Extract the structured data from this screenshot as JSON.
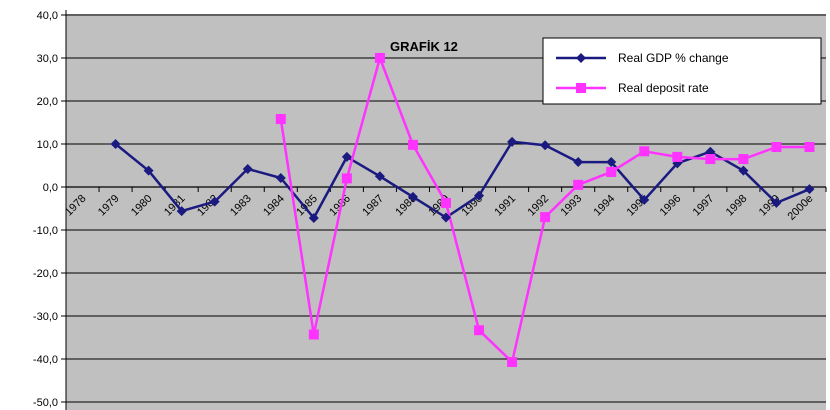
{
  "chart_data": {
    "type": "line",
    "title": "GRAFİK 12",
    "x": [
      "1978",
      "1979",
      "1980",
      "1981",
      "1982",
      "1983",
      "1984",
      "1985",
      "1986",
      "1987",
      "1988",
      "1989",
      "1990",
      "1991",
      "1992",
      "1993",
      "1994",
      "1995",
      "1996",
      "1997",
      "1998",
      "1999",
      "2000e"
    ],
    "ylim": [
      -50,
      40
    ],
    "yticks": [
      "40,0",
      "30,0",
      "20,0",
      "10,0",
      "0,0",
      "-10,0",
      "-20,0",
      "-30,0",
      "-40,0",
      "-50,0"
    ],
    "grid": true,
    "legend_position": "top-right",
    "series": [
      {
        "name": "Real GDP % change",
        "color": "#1a1a80",
        "marker": "diamond",
        "values": [
          null,
          10.0,
          3.8,
          -5.6,
          -3.4,
          4.2,
          2.1,
          -7.2,
          7.0,
          2.5,
          -2.3,
          -7.1,
          -2.0,
          10.5,
          9.7,
          5.8,
          5.8,
          -3.0,
          5.5,
          8.2,
          3.8,
          -3.7,
          -0.5
        ]
      },
      {
        "name": "Real deposit rate",
        "color": "#ff33ff",
        "marker": "square",
        "values": [
          null,
          null,
          null,
          null,
          null,
          null,
          15.8,
          -34.3,
          2.0,
          30.0,
          9.8,
          -3.7,
          -33.3,
          -40.7,
          -7.0,
          0.5,
          3.5,
          8.3,
          7.0,
          6.5,
          6.5,
          9.3,
          9.3
        ]
      }
    ]
  }
}
